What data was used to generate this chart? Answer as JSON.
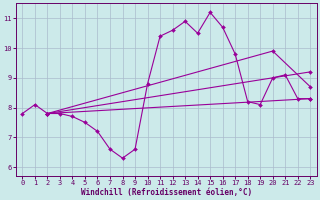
{
  "xlabel": "Windchill (Refroidissement éolien,°C)",
  "bg_color": "#cceaea",
  "line_color": "#990099",
  "grid_color": "#aabbcc",
  "xlim": [
    -0.5,
    23.5
  ],
  "ylim": [
    5.7,
    11.5
  ],
  "yticks": [
    6,
    7,
    8,
    9,
    10,
    11
  ],
  "xticks": [
    0,
    1,
    2,
    3,
    4,
    5,
    6,
    7,
    8,
    9,
    10,
    11,
    12,
    13,
    14,
    15,
    16,
    17,
    18,
    19,
    20,
    21,
    22,
    23
  ],
  "lines": [
    {
      "x": [
        0,
        1,
        2,
        3,
        4,
        5,
        6,
        7,
        8,
        9,
        10,
        11,
        12,
        13,
        14,
        15,
        16,
        17,
        18,
        19,
        20,
        21,
        22,
        23
      ],
      "y": [
        7.8,
        8.1,
        7.8,
        7.8,
        7.7,
        7.5,
        7.2,
        6.6,
        6.3,
        6.6,
        8.8,
        10.4,
        10.6,
        10.9,
        10.5,
        11.2,
        10.7,
        9.8,
        8.2,
        8.1,
        9.0,
        9.1,
        8.3,
        8.3
      ]
    },
    {
      "x": [
        2,
        23
      ],
      "y": [
        7.8,
        9.2
      ]
    },
    {
      "x": [
        2,
        20,
        23
      ],
      "y": [
        7.8,
        9.9,
        8.7
      ]
    },
    {
      "x": [
        2,
        23
      ],
      "y": [
        7.8,
        8.3
      ]
    }
  ]
}
